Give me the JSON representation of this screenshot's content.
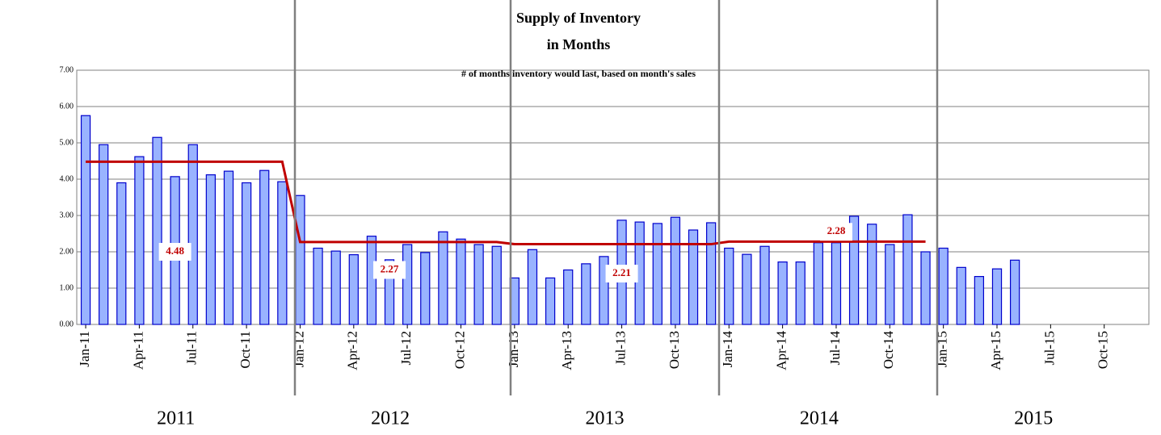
{
  "chart_data": {
    "type": "bar",
    "title": "Supply of Inventory",
    "title_line2": "in Months",
    "subtitle": "# of months inventory would last, based on month's sales",
    "categories": [
      "Jan-11",
      null,
      null,
      "Apr-11",
      null,
      null,
      "Jul-11",
      null,
      null,
      "Oct-11",
      null,
      null,
      "Jan-12",
      null,
      null,
      "Apr-12",
      null,
      null,
      "Jul-12",
      null,
      null,
      "Oct-12",
      null,
      null,
      "Jan-13",
      null,
      null,
      "Apr-13",
      null,
      null,
      "Jul-13",
      null,
      null,
      "Oct-13",
      null,
      null,
      "Jan-14",
      null,
      null,
      "Apr-14",
      null,
      null,
      "Jul-14",
      null,
      null,
      "Oct-14",
      null,
      null,
      "Jan-15",
      null,
      null,
      "Apr-15",
      null,
      null,
      "Jul-15",
      null,
      null,
      "Oct-15",
      null,
      null
    ],
    "series": [
      {
        "type": "bar",
        "color": "#99b3ff",
        "values": [
          5.75,
          4.95,
          3.9,
          4.62,
          5.15,
          4.07,
          4.95,
          4.12,
          4.22,
          3.9,
          4.24,
          3.93,
          3.55,
          2.1,
          2.02,
          1.92,
          2.43,
          1.78,
          2.2,
          1.98,
          2.55,
          2.35,
          2.2,
          2.15,
          1.28,
          2.06,
          1.28,
          1.5,
          1.67,
          1.87,
          2.87,
          2.82,
          2.78,
          2.95,
          2.6,
          2.8,
          2.1,
          1.93,
          2.15,
          1.72,
          1.72,
          2.25,
          2.25,
          2.98,
          2.76,
          2.2,
          3.02,
          2.0,
          2.1,
          1.57,
          1.32,
          1.53,
          1.77,
          null,
          null,
          null,
          null,
          null,
          null,
          null
        ]
      },
      {
        "type": "line",
        "color": "#c00000",
        "values": [
          4.48,
          4.48,
          4.48,
          4.48,
          4.48,
          4.48,
          4.48,
          4.48,
          4.48,
          4.48,
          4.48,
          4.48,
          2.27,
          2.27,
          2.27,
          2.27,
          2.27,
          2.27,
          2.27,
          2.27,
          2.27,
          2.27,
          2.27,
          2.27,
          2.21,
          2.21,
          2.21,
          2.21,
          2.21,
          2.21,
          2.21,
          2.21,
          2.21,
          2.21,
          2.21,
          2.21,
          2.28,
          2.28,
          2.28,
          2.28,
          2.28,
          2.28,
          2.28,
          2.28,
          2.28,
          2.28,
          2.28,
          2.28,
          null,
          null,
          null,
          null,
          null,
          null,
          null,
          null,
          null,
          null,
          null,
          null
        ]
      }
    ],
    "ylim": [
      0,
      7
    ],
    "yticks": [
      {
        "value": 0,
        "label": "0.00"
      },
      {
        "value": 1,
        "label": "1.00"
      },
      {
        "value": 2,
        "label": "2.00"
      },
      {
        "value": 3,
        "label": "3.00"
      },
      {
        "value": 4,
        "label": "4.00"
      },
      {
        "value": 5,
        "label": "5.00"
      },
      {
        "value": 6,
        "label": "6.00"
      },
      {
        "value": 7,
        "label": "7.00"
      }
    ],
    "grid": true,
    "year_labels": [
      "2011",
      "2012",
      "2013",
      "2014",
      "2015"
    ]
  }
}
